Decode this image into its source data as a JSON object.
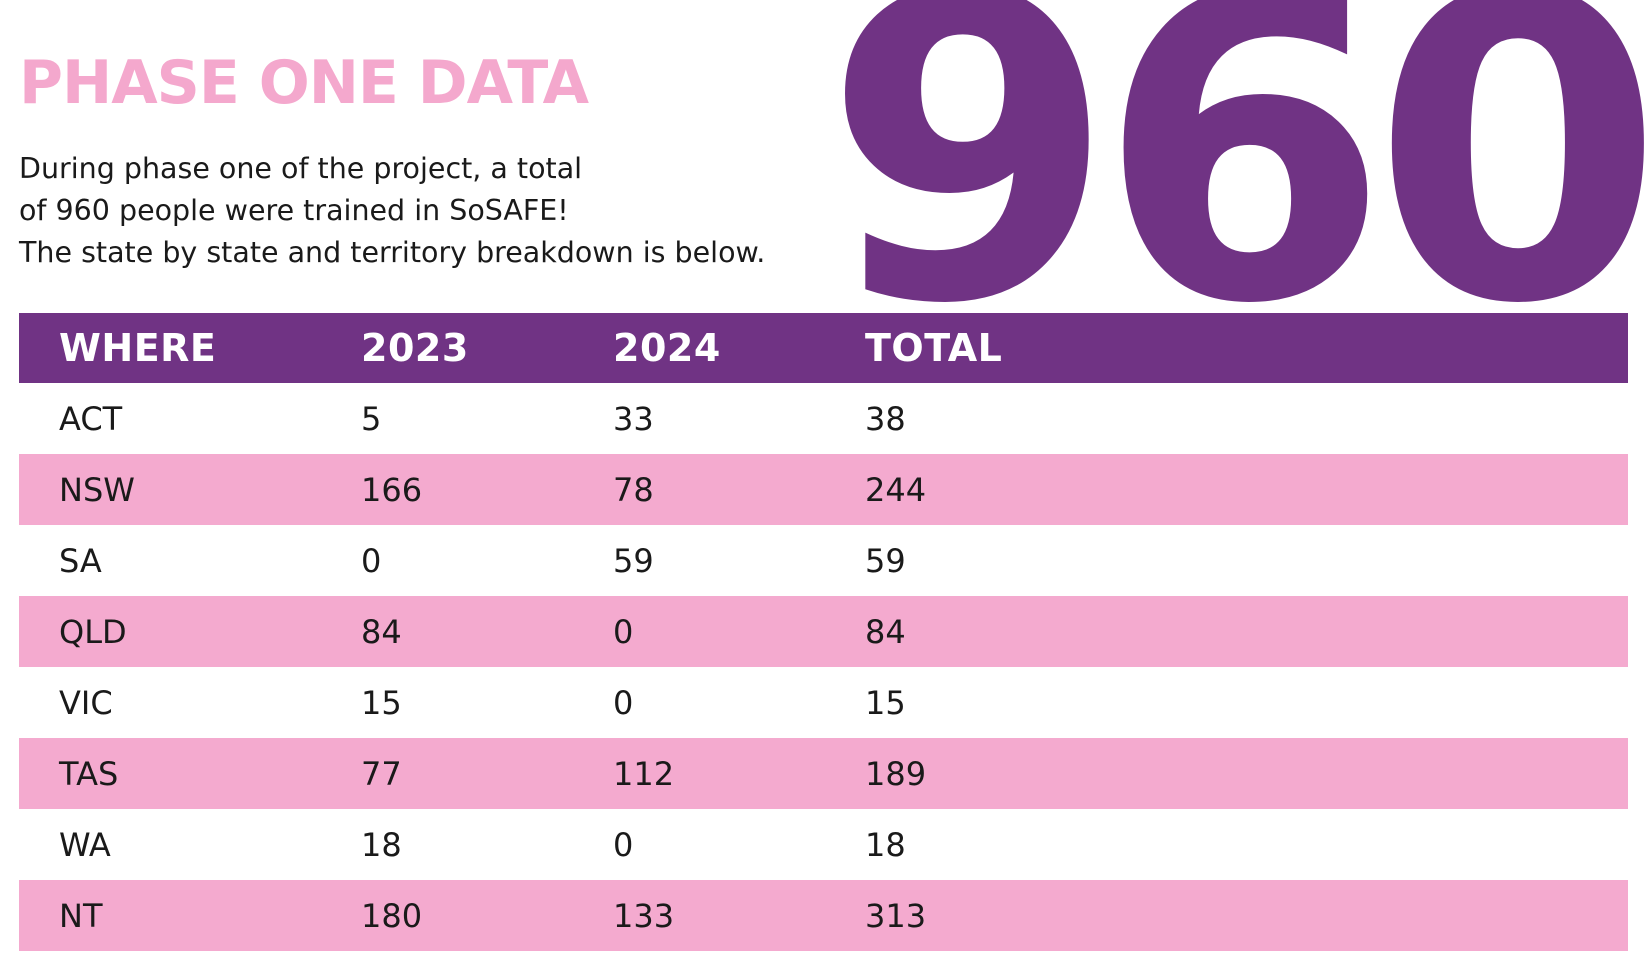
{
  "title": "PHASE ONE DATA",
  "intro": {
    "line1": "During phase one of the project, a total",
    "line2": "of 960 people were trained in SoSAFE!",
    "line3": "The state by state and territory breakdown is below."
  },
  "big_number": "960",
  "colors": {
    "purple": "#703384",
    "pink": "#f4aacf",
    "title_pink": "#f4a8cd"
  },
  "table": {
    "headers": [
      "WHERE",
      "2023",
      "2024",
      "TOTAL"
    ],
    "rows": [
      [
        "ACT",
        "5",
        "33",
        "38"
      ],
      [
        "NSW",
        "166",
        "78",
        "244"
      ],
      [
        "SA",
        "0",
        "59",
        "59"
      ],
      [
        "QLD",
        "84",
        "0",
        "84"
      ],
      [
        "VIC",
        "15",
        "0",
        "15"
      ],
      [
        "TAS",
        "77",
        "112",
        "189"
      ],
      [
        "WA",
        "18",
        "0",
        "18"
      ],
      [
        "NT",
        "180",
        "133",
        "313"
      ]
    ]
  }
}
